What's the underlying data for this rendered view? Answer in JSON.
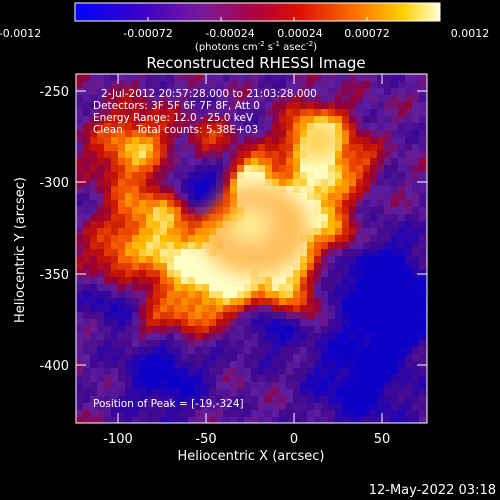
{
  "colorbar": {
    "tick_labels": [
      "-0.0012",
      "-0.00072",
      "-0.00024",
      "0.00024",
      "0.00072",
      "0.0012"
    ],
    "units_prefix": "(photons cm",
    "units_exp1": "-2",
    "units_mid": " s",
    "units_exp2": "-1",
    "units_mid2": " asec",
    "units_exp3": "-2",
    "units_suffix": ")"
  },
  "title": "Reconstructed RHESSI Image",
  "info": {
    "line1": "2-Jul-2012 20:57:28.000 to 21:03:28.000",
    "line2": "Detectors: 3F 5F 6F 7F 8F, Att 0",
    "line3": "Energy Range: 12.0 - 25.0 keV",
    "line4": "Clean    Total counts: 5.38E+03",
    "peak": "Position of Peak = [-19,-324]"
  },
  "axes": {
    "xlabel": "Heliocentric X (arcsec)",
    "ylabel": "Heliocentric Y (arcsec)",
    "xticks": [
      "-100",
      "-50",
      "0",
      "50"
    ],
    "yticks": [
      "-250",
      "-300",
      "-350",
      "-400"
    ]
  },
  "footer": {
    "timestamp": "12-May-2022 03:18"
  },
  "colors": {
    "background": "#000000",
    "text": "#ffffff"
  }
}
